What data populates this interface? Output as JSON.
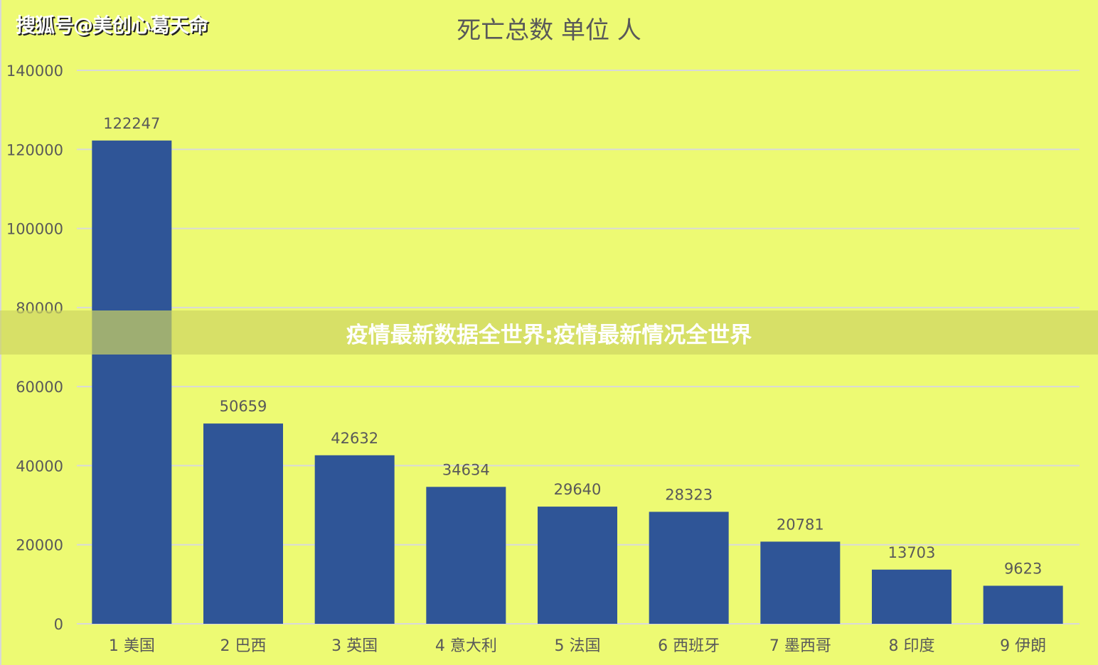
{
  "watermark": "搜狐号@美创心葛天命",
  "overlay_caption": "疫情最新数据全世界:疫情最新情况全世界",
  "chart_data": {
    "type": "bar",
    "title": "死亡总数 单位 人",
    "categories": [
      "1 美国",
      "2 巴西",
      "3 英国",
      "4 意大利",
      "5 法国",
      "6 西班牙",
      "7 墨西哥",
      "8 印度",
      "9 伊朗"
    ],
    "values": [
      122247,
      50659,
      42632,
      34634,
      29640,
      28323,
      20781,
      13703,
      9623
    ],
    "data_labels": [
      "122247",
      "50659",
      "42632",
      "34634",
      "29640",
      "28323",
      "20781",
      "13703",
      "9623"
    ],
    "ylim": [
      0,
      140000
    ],
    "yticks": [
      "0",
      "20000",
      "40000",
      "60000",
      "80000",
      "100000",
      "120000",
      "140000"
    ],
    "grid": true,
    "legend": "none",
    "colors": {
      "bar": "#2f5597",
      "background": "#edfa73",
      "grid": "#d9d9d9",
      "text": "#595959"
    }
  }
}
